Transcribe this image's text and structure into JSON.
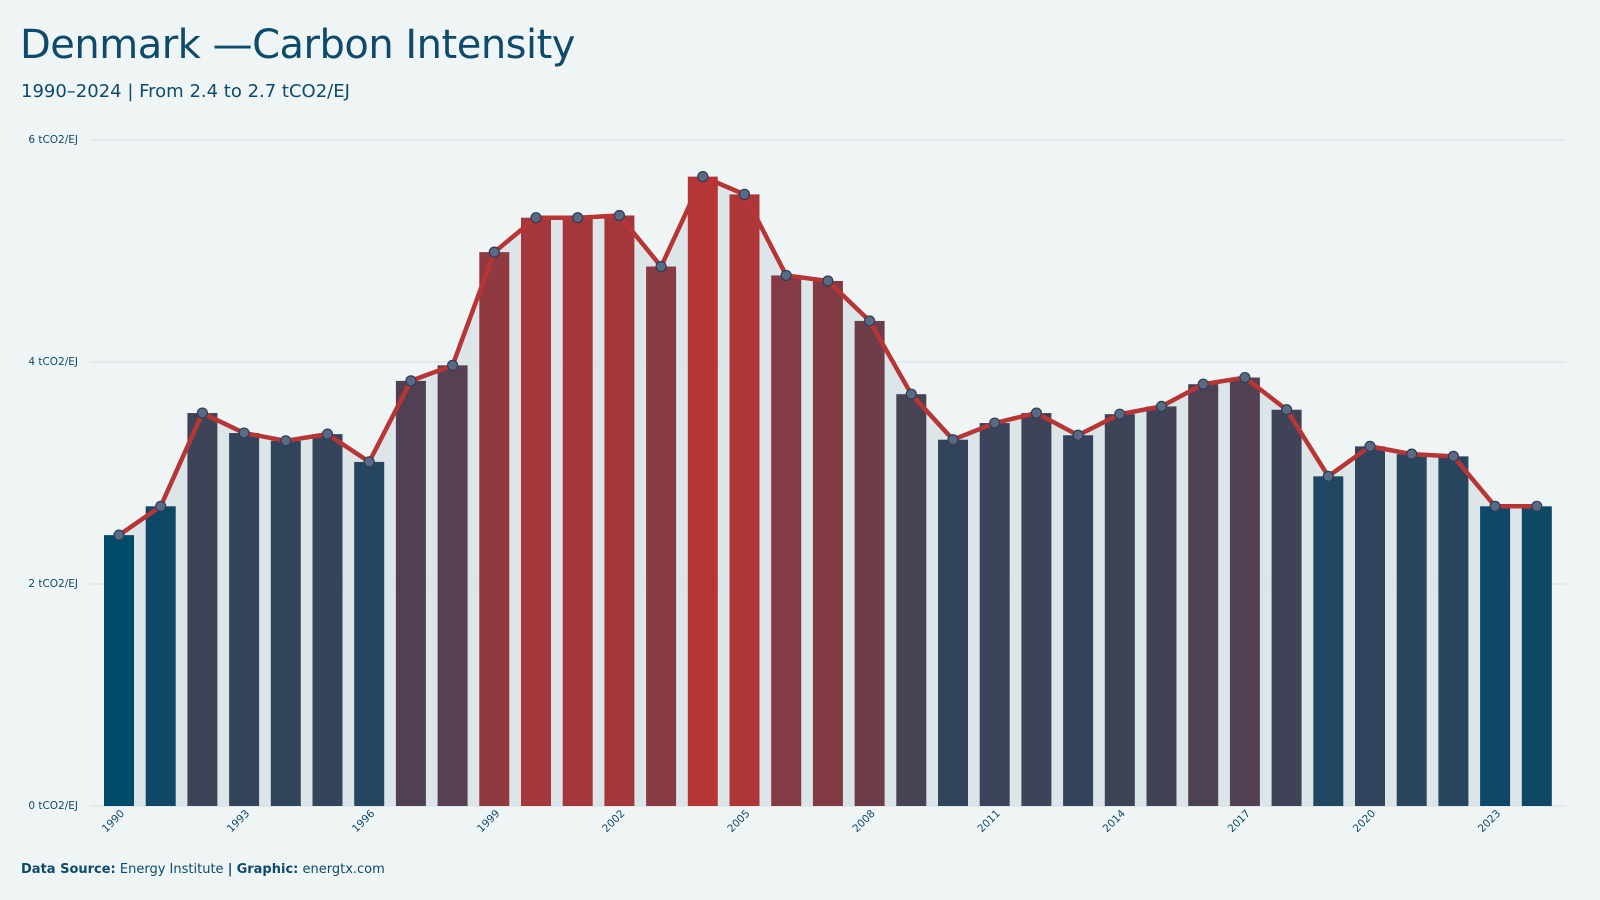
{
  "header": {
    "title": "Denmark —Carbon Intensity",
    "subtitle": "1990–2024 | From 2.4 to 2.7 tCO2/EJ"
  },
  "footer": {
    "source_label": "Data Source:",
    "source_value": "Energy Institute",
    "separator": "|",
    "graphic_label": "Graphic:",
    "graphic_value": "energtx.com"
  },
  "colors": {
    "background": "#eff5f5",
    "low": "#004a6a",
    "high": "#b83535",
    "line": "#b83535",
    "area": "#d8e3e6",
    "grid": "#d6e0e3",
    "text": "#0d4a6b"
  },
  "chart_data": {
    "type": "bar",
    "title": "Denmark —Carbon Intensity",
    "subtitle": "1990–2024 | From 2.4 to 2.7 tCO2/EJ",
    "ylim": [
      0,
      6
    ],
    "y_ticks": [
      0,
      2,
      4,
      6
    ],
    "y_tick_labels": [
      "0 tCO2/EJ",
      "2 tCO2/EJ",
      "4 tCO2/EJ",
      "6 tCO2/EJ"
    ],
    "x_tick_labels": [
      "1990",
      "1993",
      "1996",
      "1999",
      "2002",
      "2005",
      "2008",
      "2011",
      "2014",
      "2017",
      "2020",
      "2023"
    ],
    "grid": true,
    "series": [
      {
        "type": "bar+line",
        "categories": [
          1990,
          1991,
          1992,
          1993,
          1994,
          1995,
          1996,
          1997,
          1998,
          1999,
          2000,
          2001,
          2002,
          2003,
          2004,
          2005,
          2006,
          2007,
          2008,
          2009,
          2010,
          2011,
          2012,
          2013,
          2014,
          2015,
          2016,
          2017,
          2018,
          2019,
          2020,
          2021,
          2022,
          2023,
          2024
        ],
        "values": [
          2.44,
          2.7,
          3.54,
          3.36,
          3.29,
          3.35,
          3.1,
          3.83,
          3.97,
          4.99,
          5.3,
          5.3,
          5.32,
          4.86,
          5.67,
          5.51,
          4.78,
          4.73,
          4.37,
          3.71,
          3.3,
          3.45,
          3.54,
          3.34,
          3.53,
          3.6,
          3.8,
          3.86,
          3.57,
          2.97,
          3.24,
          3.17,
          3.15,
          2.7,
          2.7
        ]
      }
    ]
  }
}
